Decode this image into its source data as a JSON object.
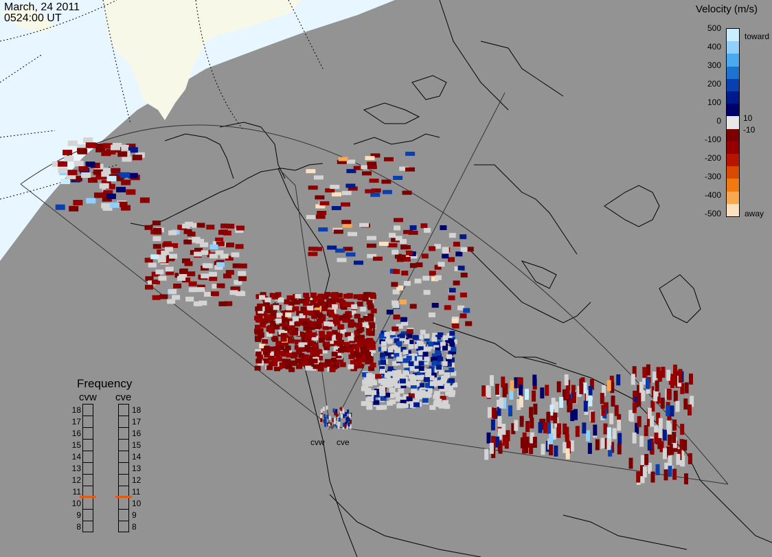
{
  "header": {
    "date": "March, 24 2011",
    "time": "0524:00 UT"
  },
  "colors": {
    "background": "#939393",
    "night_ocean": "#e8f6ff",
    "night_land": "#f8f8e8",
    "coastline": "#000000",
    "no_data_gray": "#d4d4d4",
    "frequency_marker": "#e35a12"
  },
  "velocity_scale": {
    "title": "Velocity (m/s)",
    "labels": [
      "500",
      "400",
      "300",
      "200",
      "100",
      "10",
      "0",
      "-10",
      "-100",
      "-200",
      "-300",
      "-400",
      "-500"
    ],
    "toward_label": "toward",
    "away_label": "away",
    "colors": [
      "#c8eeff",
      "#8fd0ff",
      "#4aaaf0",
      "#1e73d0",
      "#0a3fb0",
      "#001a8c",
      "#00006a",
      "#e8e8e8",
      "#7a0000",
      "#960000",
      "#b81500",
      "#d84a00",
      "#ee7a10",
      "#f8a850",
      "#fde0c0"
    ]
  },
  "radars": [
    {
      "name": "cvw",
      "frequency_mhz": 11
    },
    {
      "name": "cve",
      "frequency_mhz": 11
    }
  ],
  "frequency_panel": {
    "title": "Frequency",
    "scale": [
      18,
      17,
      16,
      15,
      14,
      13,
      12,
      11,
      10,
      9,
      8
    ]
  }
}
